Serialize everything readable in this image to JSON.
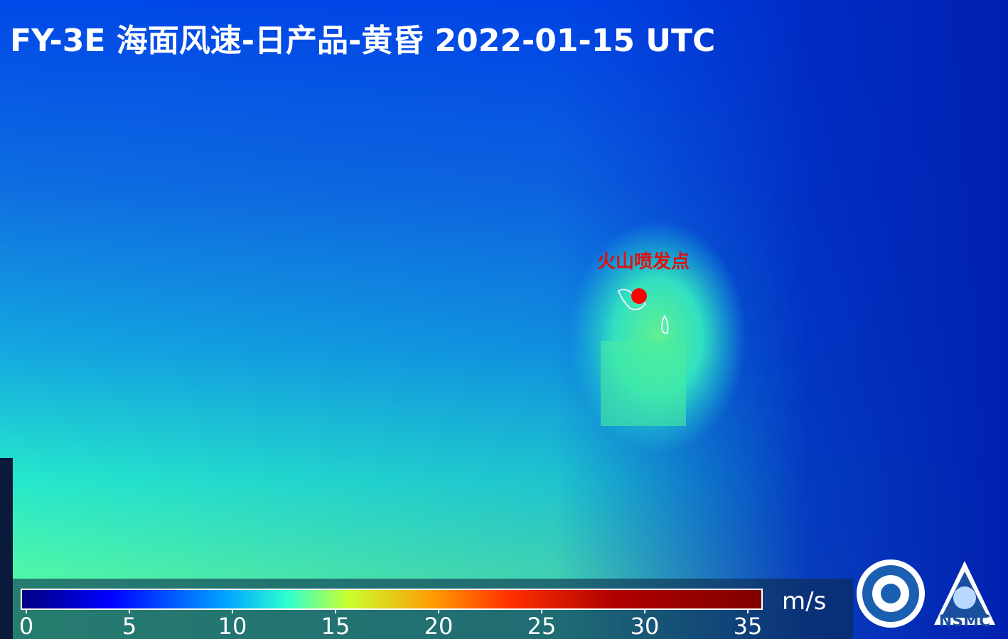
{
  "title": "FY-3E 海面风速-日产品-黄昏 2022-01-15 UTC",
  "annotation": "火山喷发点",
  "colorbar": {
    "unit": "m/s",
    "range": [
      0,
      35
    ],
    "ticks": [
      0,
      5,
      10,
      15,
      20,
      25,
      30,
      35
    ]
  },
  "logos": {
    "nsmc": "NSMC"
  }
}
